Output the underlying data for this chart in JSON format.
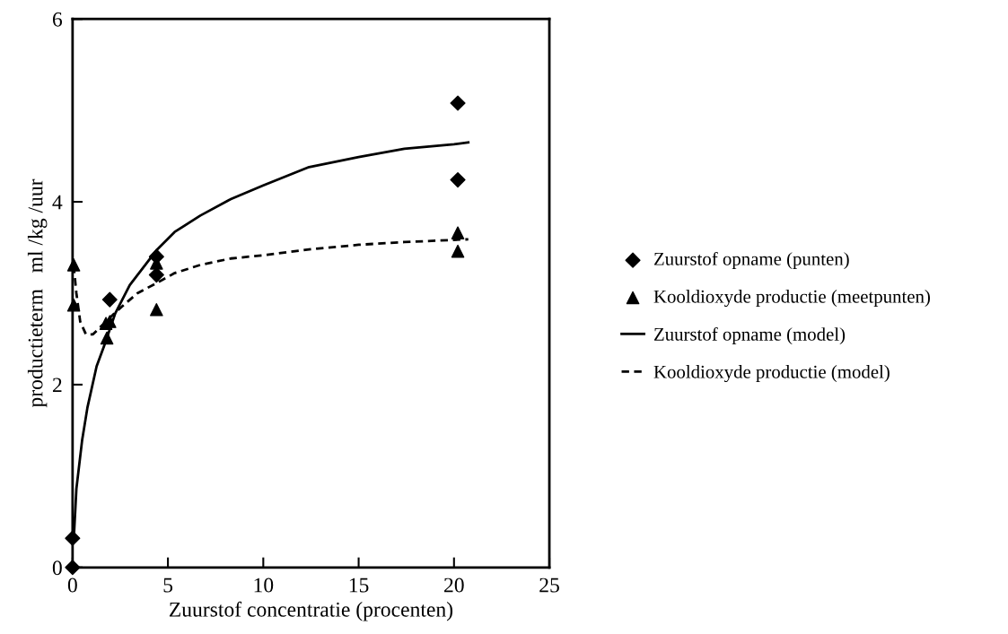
{
  "chart_data": {
    "type": "scatter",
    "xlabel": "Zuurstof concentratie (procenten)",
    "ylabel": "productieterm   ml /kg /uur",
    "xlim": [
      0,
      25
    ],
    "ylim": [
      0,
      6
    ],
    "xticks": [
      0,
      5,
      10,
      15,
      20,
      25
    ],
    "yticks": [
      0,
      2,
      4,
      6
    ],
    "grid": false,
    "legend": "right",
    "series": [
      {
        "name": "Zuurstof opname (punten)",
        "marker": "diamond",
        "color": "#000000",
        "x": [
          0,
          0,
          1.95,
          4.4,
          4.4,
          20.2,
          20.2
        ],
        "values": [
          0,
          0.32,
          2.93,
          3.4,
          3.2,
          5.08,
          4.24
        ]
      },
      {
        "name": "Kooldioxyde productie (meetpunten)",
        "marker": "triangle",
        "color": "#000000",
        "x": [
          0.06,
          0.06,
          1.75,
          1.8,
          1.95,
          4.4,
          4.4,
          20.2,
          20.2
        ],
        "values": [
          3.31,
          2.87,
          2.67,
          2.51,
          2.69,
          3.33,
          2.82,
          3.66,
          3.46
        ]
      },
      {
        "name": "Zuurstof opname (model)",
        "type": "line",
        "line_style": "solid",
        "color": "#000000",
        "x": [
          0.06,
          0.2,
          0.5,
          0.78,
          1.26,
          1.65,
          2.24,
          3.0,
          4.4,
          5.35,
          6.7,
          8.3,
          10,
          12.4,
          15,
          17.4,
          20,
          20.75
        ],
        "values": [
          0.3,
          0.86,
          1.39,
          1.75,
          2.2,
          2.42,
          2.78,
          3.09,
          3.47,
          3.67,
          3.85,
          4.03,
          4.18,
          4.38,
          4.49,
          4.58,
          4.63,
          4.65
        ]
      },
      {
        "name": "Kooldioxyde productie (model)",
        "type": "line",
        "line_style": "dashed",
        "color": "#000000",
        "x": [
          0.06,
          0.2,
          0.4,
          0.7,
          1.07,
          1.65,
          2.4,
          3.4,
          4.4,
          5.35,
          6.7,
          8.3,
          10.2,
          12.4,
          15,
          17.4,
          20.75
        ],
        "values": [
          3.3,
          3.0,
          2.69,
          2.55,
          2.55,
          2.67,
          2.82,
          3.0,
          3.11,
          3.22,
          3.31,
          3.38,
          3.42,
          3.48,
          3.53,
          3.56,
          3.59
        ]
      }
    ]
  }
}
